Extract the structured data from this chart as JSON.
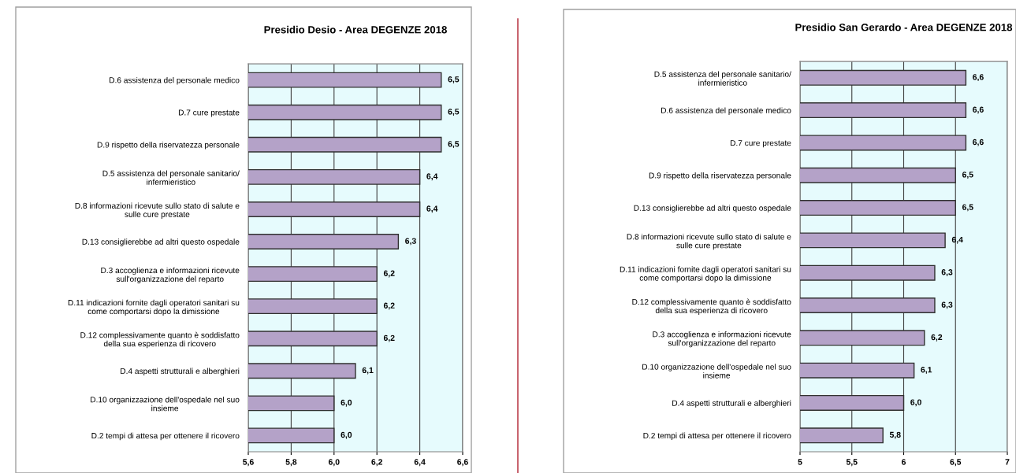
{
  "chart_data": [
    {
      "type": "bar",
      "orientation": "horizontal",
      "title": "Presidio Desio - Area DEGENZE 2018",
      "categories": [
        "D.6 assistenza del personale medico",
        "D.7 cure prestate",
        "D.9 rispetto della riservatezza personale",
        "D.5 assistenza del personale sanitario/\ninfermieristico",
        "D.8 informazioni ricevute sullo stato di salute e\nsulle cure prestate",
        "D.13 consiglierebbe ad altri questo ospedale",
        "D.3 accoglienza e informazioni ricevute\nsull'organizzazione del reparto",
        "D.11 indicazioni fornite dagli operatori sanitari su\ncome comportarsi dopo la dimissione",
        "D.12 complessivamente quanto è soddisfatto\ndella sua esperienza di ricovero",
        "D.4 aspetti strutturali e alberghieri",
        "D.10 organizzazione dell'ospedale nel suo\ninsieme",
        "D.2 tempi di attesa per ottenere il ricovero"
      ],
      "values": [
        6.5,
        6.5,
        6.5,
        6.4,
        6.4,
        6.3,
        6.2,
        6.2,
        6.2,
        6.1,
        6.0,
        6.0
      ],
      "value_labels": [
        "6,5",
        "6,5",
        "6,5",
        "6,4",
        "6,4",
        "6,3",
        "6,2",
        "6,2",
        "6,2",
        "6,1",
        "6,0",
        "6,0"
      ],
      "color": "#b4a2c8",
      "xlim": [
        5.6,
        6.6
      ],
      "xticks": [
        {
          "value": 5.6,
          "label": "5,6"
        },
        {
          "value": 5.8,
          "label": "5,8"
        },
        {
          "value": 6.0,
          "label": "6,0"
        },
        {
          "value": 6.2,
          "label": "6,2"
        },
        {
          "value": 6.4,
          "label": "6,4"
        },
        {
          "value": 6.6,
          "label": "6,6"
        }
      ],
      "grid": "x"
    },
    {
      "type": "bar",
      "orientation": "horizontal",
      "title": "Presidio San Gerardo - Area DEGENZE 2018",
      "categories": [
        "D.5 assistenza del personale sanitario/\ninfermieristico",
        "D.6 assistenza del personale medico",
        "D.7 cure prestate",
        "D.9 rispetto della riservatezza personale",
        "D.13 consiglierebbe ad altri questo ospedale",
        "D.8 informazioni ricevute sullo stato di salute e\nsulle cure prestate",
        "D.11 indicazioni fornite dagli operatori sanitari su\ncome comportarsi dopo la dimissione",
        "D.12 complessivamente quanto è soddisfatto\ndella sua esperienza di ricovero",
        "D.3 accoglienza e informazioni ricevute\nsull'organizzazione del reparto",
        "D.10 organizzazione dell'ospedale nel suo\ninsieme",
        "D.4 aspetti strutturali e alberghieri",
        "D.2 tempi di attesa per ottenere il ricovero"
      ],
      "values": [
        6.6,
        6.6,
        6.6,
        6.5,
        6.5,
        6.4,
        6.3,
        6.3,
        6.2,
        6.1,
        6.0,
        5.8
      ],
      "value_labels": [
        "6,6",
        "6,6",
        "6,6",
        "6,5",
        "6,5",
        "6,4",
        "6,3",
        "6,3",
        "6,2",
        "6,1",
        "6,0",
        "5,8"
      ],
      "color": "#b4a2c8",
      "xlim": [
        5,
        7
      ],
      "xticks": [
        5,
        {
          "value": 5.5,
          "label": "5,5"
        },
        6,
        {
          "value": 6.5,
          "label": "6,5"
        },
        7
      ],
      "grid": "x"
    }
  ]
}
